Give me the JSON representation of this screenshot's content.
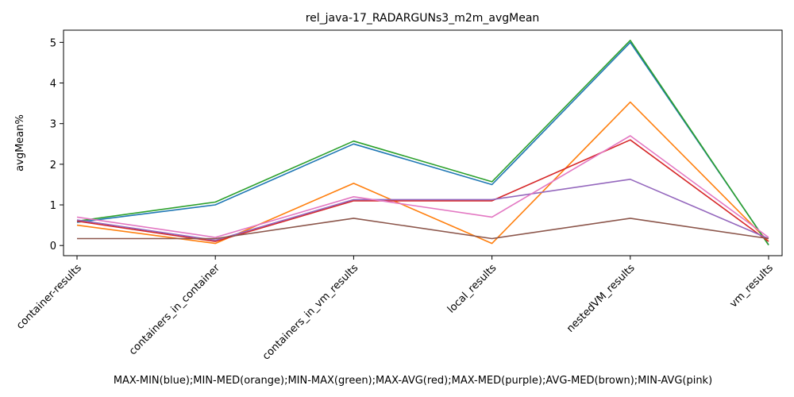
{
  "chart_data": {
    "type": "line",
    "title": "rel_java-17_RADARGUNs3_m2m_avgMean",
    "xlabel": "MAX-MIN(blue);MIN-MED(orange);MIN-MAX(green);MAX-AVG(red);MAX-MED(purple);AVG-MED(brown);MIN-AVG(pink)",
    "ylabel": "avgMean%",
    "categories": [
      "container-results",
      "containers_in_container",
      "containers_in_vm_results",
      "local_results",
      "nestedVM_results",
      "vm_results"
    ],
    "ylim": [
      -0.25,
      5.3
    ],
    "yticks": [
      0,
      1,
      2,
      3,
      4,
      5
    ],
    "grid": false,
    "series": [
      {
        "color": "#1f77b4",
        "values": [
          0.57,
          1.0,
          2.5,
          1.5,
          5.0,
          0.02
        ]
      },
      {
        "color": "#ff7f0e",
        "values": [
          0.5,
          0.05,
          1.53,
          0.05,
          3.53,
          0.1
        ]
      },
      {
        "color": "#2ca02c",
        "values": [
          0.6,
          1.07,
          2.57,
          1.57,
          5.05,
          0.01
        ]
      },
      {
        "color": "#d62728",
        "values": [
          0.6,
          0.1,
          1.1,
          1.1,
          2.6,
          0.1
        ]
      },
      {
        "color": "#9467bd",
        "values": [
          0.63,
          0.13,
          1.13,
          1.13,
          1.63,
          0.17
        ]
      },
      {
        "color": "#8c564b",
        "values": [
          0.17,
          0.17,
          0.67,
          0.17,
          0.67,
          0.17
        ]
      },
      {
        "color": "#e377c2",
        "values": [
          0.7,
          0.2,
          1.2,
          0.7,
          2.7,
          0.2
        ]
      }
    ]
  }
}
